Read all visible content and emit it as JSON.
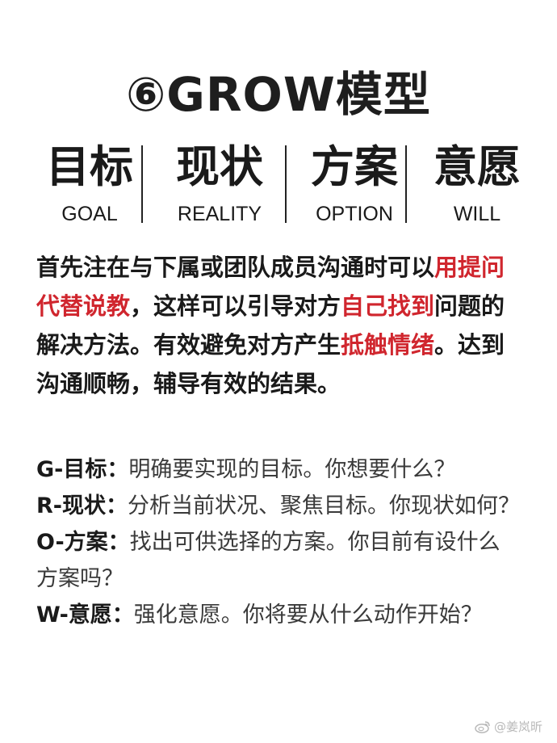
{
  "title": "⑥GROW模型",
  "columns": [
    {
      "zh": "目标",
      "en": "GOAL"
    },
    {
      "zh": "现状",
      "en": "REALITY"
    },
    {
      "zh": "方案",
      "en": "OPTION"
    },
    {
      "zh": "意愿",
      "en": "WILL"
    }
  ],
  "intro": {
    "p1": "首先注在与下属或团队成员沟通时可以",
    "h1": "用提问代替说教",
    "p2": "，这样可以引导对方",
    "h2": "自己找到",
    "p3": "问题的解决方法。有效避免对方产生",
    "h3": "抵触情绪",
    "p4": "。达到沟通顺畅，辅导有效的结果。"
  },
  "questions": [
    {
      "key": "G-目标：",
      "value": "明确要实现的目标。你想要什么？"
    },
    {
      "key": "R-现状：",
      "value": "分析当前状况、聚焦目标。你现状如何？"
    },
    {
      "key": "O-方案：",
      "value": "找出可供选择的方案。你目前有设什么方案吗？"
    },
    {
      "key": "W-意愿：",
      "value": "强化意愿。你将要从什么动作开始？"
    }
  ],
  "watermark": {
    "text": "@姜岚昕",
    "icon": "weibo-icon",
    "color": "#b9b9b9"
  },
  "colors": {
    "text": "#1a1a1a",
    "accent": "#d0262e"
  }
}
